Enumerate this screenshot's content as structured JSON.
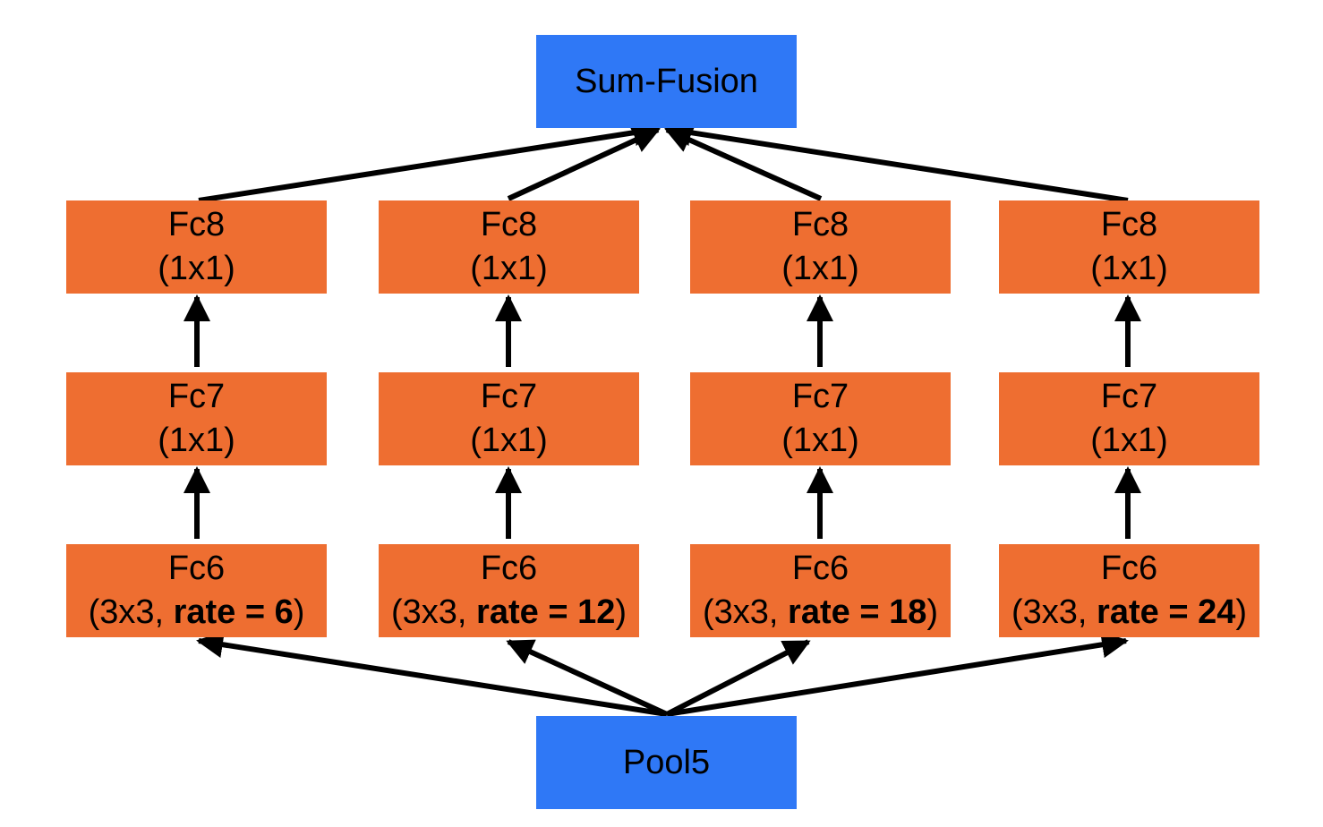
{
  "nodes": {
    "sum_fusion": "Sum-Fusion",
    "pool5": "Pool5"
  },
  "branches": [
    {
      "fc8": {
        "name": "Fc8",
        "kernel": "(1x1)"
      },
      "fc7": {
        "name": "Fc7",
        "kernel": "(1x1)"
      },
      "fc6": {
        "name": "Fc6",
        "prefix": "(3x3, ",
        "rate": "rate = 6",
        "suffix": ")"
      }
    },
    {
      "fc8": {
        "name": "Fc8",
        "kernel": "(1x1)"
      },
      "fc7": {
        "name": "Fc7",
        "kernel": "(1x1)"
      },
      "fc6": {
        "name": "Fc6",
        "prefix": "(3x3, ",
        "rate": "rate = 12",
        "suffix": ")"
      }
    },
    {
      "fc8": {
        "name": "Fc8",
        "kernel": "(1x1)"
      },
      "fc7": {
        "name": "Fc7",
        "kernel": "(1x1)"
      },
      "fc6": {
        "name": "Fc6",
        "prefix": "(3x3, ",
        "rate": "rate = 18",
        "suffix": ")"
      }
    },
    {
      "fc8": {
        "name": "Fc8",
        "kernel": "(1x1)"
      },
      "fc7": {
        "name": "Fc7",
        "kernel": "(1x1)"
      },
      "fc6": {
        "name": "Fc6",
        "prefix": "(3x3, ",
        "rate": "rate = 24",
        "suffix": ")"
      }
    }
  ],
  "colors": {
    "input_output": "#2F78F6",
    "layer": "#EE6E31",
    "arrow": "#000000"
  }
}
